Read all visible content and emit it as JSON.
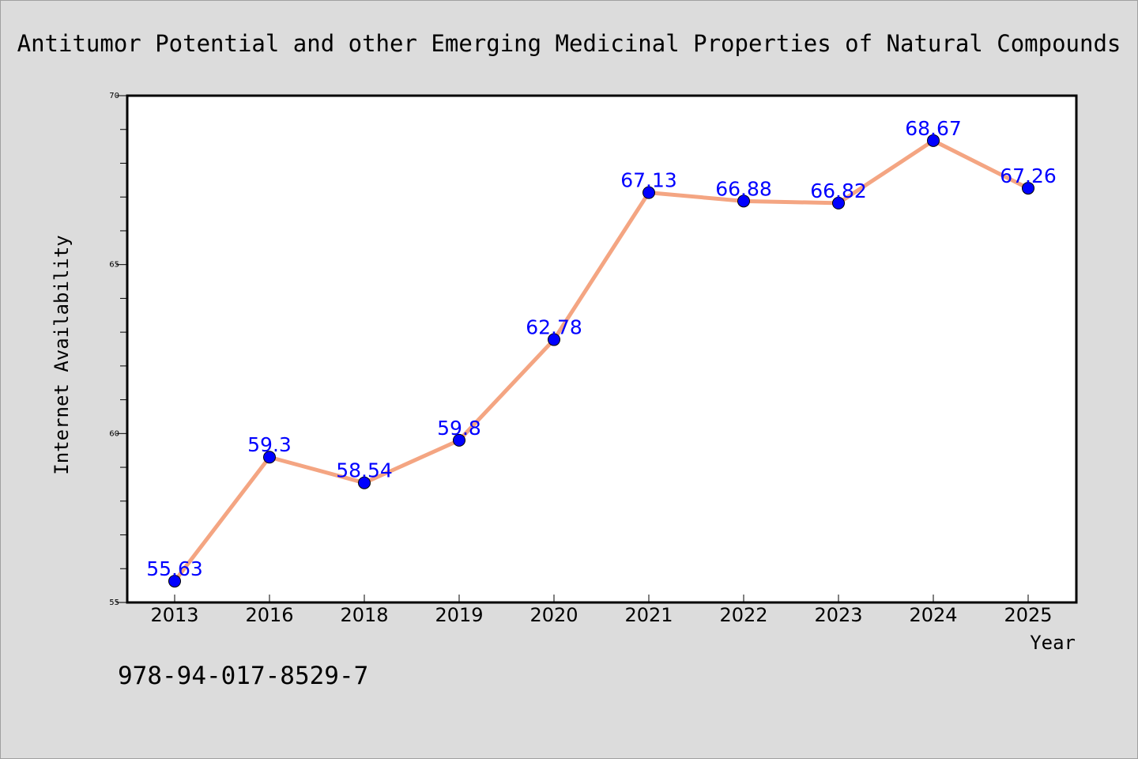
{
  "chart_data": {
    "type": "line",
    "title": "Antitumor Potential and other Emerging Medicinal Properties of Natural Compounds",
    "xlabel": "Year",
    "ylabel": "Internet Availability",
    "categories": [
      "2013",
      "2016",
      "2018",
      "2019",
      "2020",
      "2021",
      "2022",
      "2023",
      "2024",
      "2025"
    ],
    "series": [
      {
        "values": [
          55.63,
          59.3,
          58.54,
          59.8,
          62.78,
          67.13,
          66.88,
          66.82,
          68.67,
          67.26
        ],
        "labels": [
          "55.63",
          "59.3",
          "58.54",
          "59.8",
          "62.78",
          "67.13",
          "66.88",
          "66.82",
          "68.67",
          "67.26"
        ]
      }
    ],
    "ylim": [
      55,
      70
    ],
    "yticks": [
      "55",
      "60",
      "65",
      "70"
    ],
    "grid": false,
    "legend": "none",
    "colors": {
      "line": "#f4a582",
      "marker": "#0000ff",
      "label": "#0000ff",
      "background": "#dcdcdc",
      "plot_background": "#ffffff"
    }
  },
  "footer": {
    "isbn": "978-94-017-8529-7"
  }
}
